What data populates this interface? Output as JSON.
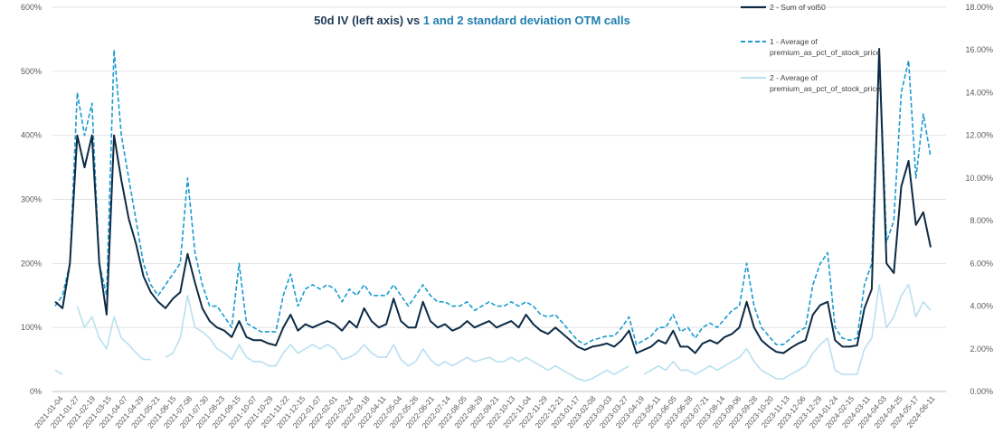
{
  "colors": {
    "vol50": "#0d2b45",
    "otm1": "#1a9bd0",
    "otm2": "#b9e0ef",
    "title_dark": "#1f3b57",
    "title_accent": "#1f7fae",
    "grid": "#e2e2e2",
    "axis_text": "#595959"
  },
  "chart_data": {
    "type": "line",
    "title": {
      "part1": "50d IV (left axis) vs ",
      "part2": "1 and 2 standard deviation OTM calls"
    },
    "xlabel": "",
    "ylabel_left": "",
    "ylabel_right": "",
    "y_left": {
      "min": 0,
      "max": 6.0,
      "ticks": [
        "0%",
        "100%",
        "200%",
        "300%",
        "400%",
        "500%",
        "600%"
      ]
    },
    "y_right": {
      "min": 0,
      "max": 0.18,
      "ticks": [
        "0.00%",
        "2.00%",
        "4.00%",
        "6.00%",
        "8.00%",
        "10.00%",
        "12.00%",
        "14.00%",
        "16.00%",
        "18.00%"
      ]
    },
    "grid": "horizontal",
    "legend_position": "top-right",
    "x_tick_labels": [
      "2021-01-04",
      "2021-01-27",
      "2021-02-19",
      "2021-03-15",
      "2021-04-07",
      "2021-04-29",
      "2021-05-21",
      "2021-06-15",
      "2021-07-08",
      "2021-07-30",
      "2021-08-23",
      "2021-09-15",
      "2021-10-07",
      "2021-10-29",
      "2021-11-22",
      "2021-12-15",
      "2022-01-07",
      "2022-02-01",
      "2022-02-24",
      "2022-03-18",
      "2022-04-11",
      "2022-05-04",
      "2022-05-26",
      "2022-06-21",
      "2022-07-14",
      "2022-08-05",
      "2022-08-29",
      "2022-09-21",
      "2022-10-13",
      "2022-11-04",
      "2022-11-29",
      "2022-12-21",
      "2023-01-17",
      "2023-02-08",
      "2023-03-03",
      "2023-03-27",
      "2023-04-19",
      "2023-05-11",
      "2023-06-05",
      "2023-06-28",
      "2023-07-21",
      "2023-08-14",
      "2023-09-06",
      "2023-09-28",
      "2023-10-20",
      "2023-11-13",
      "2023-12-06",
      "2023-12-29",
      "2024-01-24",
      "2024-02-15",
      "2024-03-11",
      "2024-04-03",
      "2024-04-25",
      "2024-05-17",
      "2024-06-11"
    ],
    "series": [
      {
        "name": "2 - Sum of vol50",
        "axis": "left",
        "style": "solid",
        "values": [
          1.4,
          1.3,
          2.0,
          4.0,
          3.5,
          4.0,
          2.0,
          1.2,
          4.0,
          3.3,
          2.7,
          2.3,
          1.8,
          1.55,
          1.4,
          1.3,
          1.45,
          1.55,
          2.15,
          1.7,
          1.3,
          1.1,
          1.0,
          0.95,
          0.85,
          1.1,
          0.85,
          0.8,
          0.8,
          0.75,
          0.72,
          1.0,
          1.2,
          0.95,
          1.05,
          1.0,
          1.05,
          1.1,
          1.05,
          0.95,
          1.1,
          1.0,
          1.3,
          1.1,
          1.0,
          1.05,
          1.45,
          1.1,
          1.0,
          1.0,
          1.4,
          1.1,
          1.0,
          1.05,
          0.95,
          1.0,
          1.1,
          1.0,
          1.05,
          1.1,
          1.0,
          1.05,
          1.1,
          1.0,
          1.2,
          1.05,
          0.95,
          0.9,
          1.0,
          0.9,
          0.8,
          0.7,
          0.65,
          0.7,
          0.72,
          0.75,
          0.7,
          0.8,
          0.95,
          0.6,
          0.65,
          0.7,
          0.8,
          0.75,
          0.95,
          0.7,
          0.7,
          0.6,
          0.75,
          0.8,
          0.75,
          0.85,
          0.9,
          1.0,
          1.4,
          1.0,
          0.8,
          0.7,
          0.62,
          0.6,
          0.68,
          0.75,
          0.8,
          1.2,
          1.35,
          1.4,
          0.8,
          0.7,
          0.7,
          0.72,
          1.3,
          1.6,
          5.35,
          2.0,
          1.85,
          3.2,
          3.6,
          2.6,
          2.8,
          2.25
        ]
      },
      {
        "name": "1 - Average of premium_as_pct_of_stock_price",
        "axis": "right",
        "style": "dashed",
        "values": [
          0.04,
          0.045,
          0.06,
          0.14,
          0.12,
          0.135,
          0.06,
          0.045,
          0.16,
          0.12,
          0.1,
          0.08,
          0.06,
          0.05,
          0.045,
          0.05,
          0.055,
          0.06,
          0.1,
          0.065,
          0.05,
          0.04,
          0.04,
          0.035,
          0.03,
          0.06,
          0.032,
          0.03,
          0.028,
          0.028,
          0.028,
          0.045,
          0.055,
          0.04,
          0.048,
          0.05,
          0.048,
          0.05,
          0.048,
          0.042,
          0.048,
          0.045,
          0.05,
          0.045,
          0.045,
          0.045,
          0.05,
          0.045,
          0.04,
          0.045,
          0.05,
          0.045,
          0.042,
          0.042,
          0.04,
          0.04,
          0.042,
          0.038,
          0.04,
          0.042,
          0.04,
          0.04,
          0.042,
          0.04,
          0.042,
          0.04,
          0.036,
          0.035,
          0.036,
          0.032,
          0.028,
          0.024,
          0.022,
          0.024,
          0.025,
          0.026,
          0.026,
          0.03,
          0.035,
          0.022,
          0.024,
          0.026,
          0.03,
          0.03,
          0.036,
          0.028,
          0.03,
          0.025,
          0.03,
          0.032,
          0.03,
          0.034,
          0.038,
          0.04,
          0.06,
          0.04,
          0.03,
          0.026,
          0.022,
          0.022,
          0.025,
          0.028,
          0.03,
          0.05,
          0.06,
          0.065,
          0.03,
          0.025,
          0.024,
          0.025,
          0.05,
          0.06,
          0.16,
          0.07,
          0.08,
          0.14,
          0.155,
          0.1,
          0.13,
          0.11
        ]
      },
      {
        "name": "2 - Average of premium_as_pct_of_stock_price",
        "axis": "right",
        "style": "solid",
        "values": [
          0.01,
          0.008,
          null,
          0.04,
          0.03,
          0.035,
          0.025,
          0.02,
          0.035,
          0.025,
          0.022,
          0.018,
          0.015,
          0.015,
          null,
          0.016,
          0.018,
          0.025,
          0.045,
          0.03,
          0.028,
          0.025,
          0.02,
          0.018,
          0.015,
          0.022,
          0.016,
          0.014,
          0.014,
          0.012,
          0.012,
          0.018,
          0.022,
          0.018,
          0.02,
          0.022,
          0.02,
          0.022,
          0.02,
          0.015,
          0.016,
          0.018,
          0.022,
          0.018,
          0.016,
          0.016,
          0.022,
          0.015,
          0.012,
          0.014,
          0.02,
          0.015,
          0.012,
          0.014,
          0.012,
          0.014,
          0.016,
          0.014,
          0.015,
          0.016,
          0.014,
          0.014,
          0.016,
          0.014,
          0.016,
          0.014,
          0.012,
          0.01,
          0.012,
          0.01,
          0.008,
          0.006,
          0.005,
          0.006,
          0.008,
          0.01,
          0.008,
          0.01,
          0.012,
          null,
          0.008,
          0.01,
          0.012,
          0.01,
          0.014,
          0.01,
          0.01,
          0.008,
          0.01,
          0.012,
          0.01,
          0.012,
          0.014,
          0.016,
          0.02,
          0.014,
          0.01,
          0.008,
          0.006,
          0.006,
          0.008,
          0.01,
          0.012,
          0.018,
          0.022,
          0.025,
          0.01,
          0.008,
          0.008,
          0.008,
          0.02,
          0.025,
          0.05,
          0.03,
          0.035,
          0.045,
          0.05,
          0.035,
          0.042,
          0.038
        ]
      }
    ]
  }
}
